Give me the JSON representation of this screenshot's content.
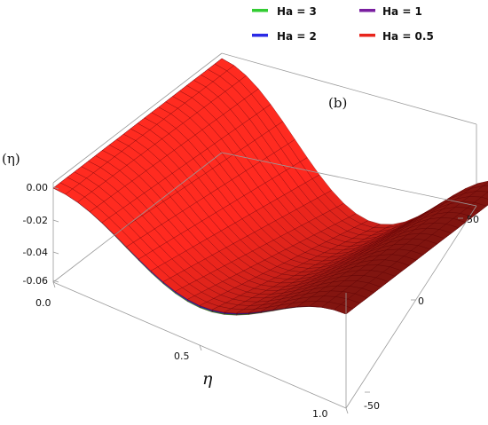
{
  "chart_data": {
    "type": "surface3d",
    "panel_label": "(b)",
    "xlabel": "η",
    "ylabel": "(η)",
    "x_ticks": [
      "0.0",
      "0.5",
      "1.0"
    ],
    "y_ticks": [
      "-50",
      "0",
      "50"
    ],
    "z_ticks": [
      "0.00",
      "-0.02",
      "-0.04",
      "-0.06"
    ],
    "xlim": [
      0,
      1
    ],
    "ylim": [
      -60,
      60
    ],
    "zlim": [
      -0.07,
      0.005
    ],
    "series": [
      {
        "name": "Ha = 3",
        "color": "#33cc33",
        "min_value": -0.07
      },
      {
        "name": "Ha = 2",
        "color": "#2a2ae6",
        "min_value": -0.069
      },
      {
        "name": "Ha = 1",
        "color": "#7a1fa0",
        "min_value": -0.0678
      },
      {
        "name": "Ha = 0.5",
        "color": "#e8251c",
        "min_value": -0.0672
      }
    ],
    "legend": {
      "position": "top",
      "entries": [
        "Ha = 3",
        "Ha = 1",
        "Ha = 2",
        "Ha = 0.5"
      ]
    },
    "surface_shape": "z(eta, t) = min_value * (sin(pi*eta))^2 * (0.55 + 0.45*(t-ymin)/(ymax-ymin)); z = 0 at eta = 0 and eta = 1"
  }
}
